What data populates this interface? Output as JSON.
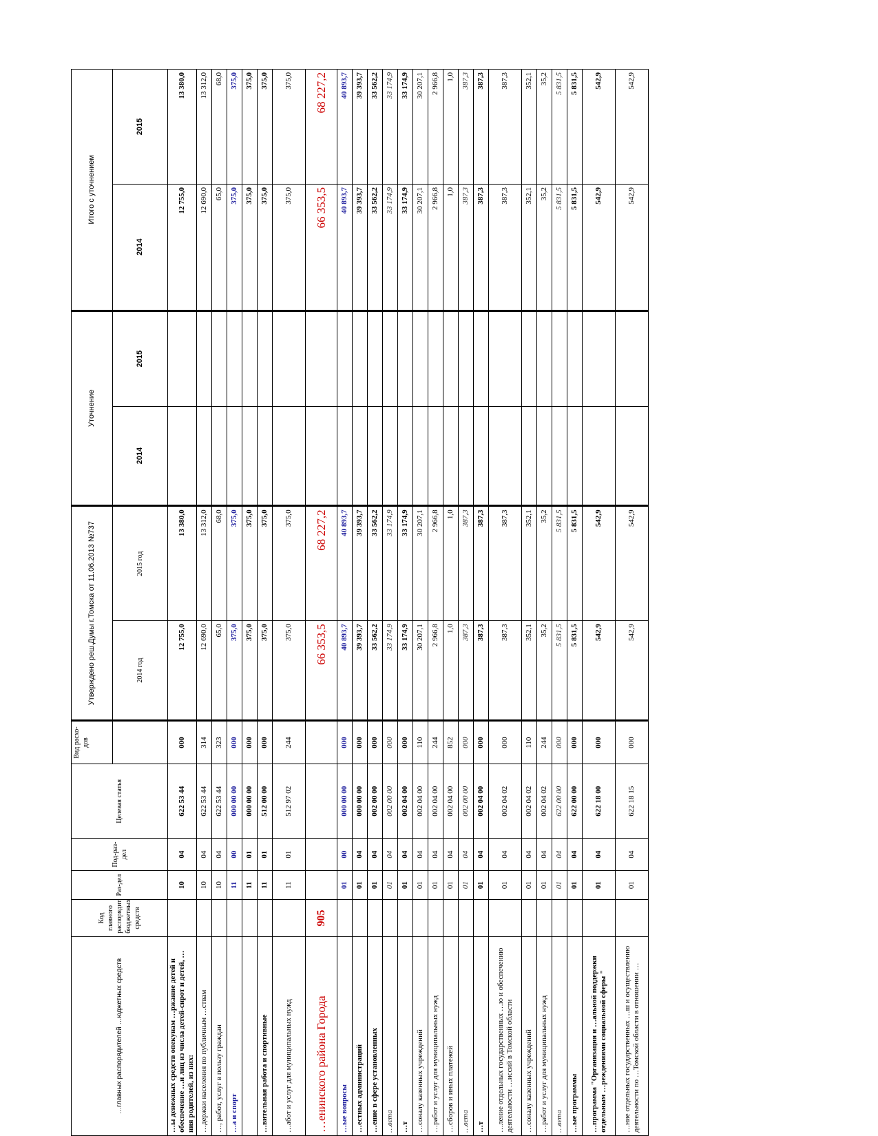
{
  "header": {
    "col_name": "…главных распорядителей …юджетных средств",
    "col_code": "Код главного распорядителя бюджетных средств",
    "col_section": "Раз-дел",
    "col_subsection": "Под-раз-дел",
    "col_target": "Целевая статья",
    "col_type": "Вид расхо-дов",
    "approved_group": "Утверждено реш.Думы г.Томска от 11.06.2013 №737",
    "approved_2014": "2014 год",
    "approved_2015": "2015 год",
    "correction_group": "Уточнение",
    "correction_2014": "2014",
    "correction_2015": "2015",
    "total_group": "Итого с уточнением",
    "total_2014": "2014",
    "total_2015": "2015"
  },
  "rows": [
    {
      "name": "…ы денежных средств опекунам …ржание детей и обеспечение …и лиц из числа детей-сирот и детей, …ния родителей, из них:",
      "code": "",
      "section": "10",
      "subsection": "04",
      "target": "622 53 44",
      "type": "000",
      "a2014": "12 755,0",
      "a2015": "13 380,0",
      "c2014": "",
      "c2015": "",
      "t2014": "12 755,0",
      "t2015": "13 380,0",
      "style": "bold"
    },
    {
      "name": "…держки населения по публичным …ствам",
      "code": "",
      "section": "10",
      "subsection": "04",
      "target": "622 53 44",
      "type": "314",
      "a2014": "12 690,0",
      "a2015": "13 312,0",
      "c2014": "",
      "c2015": "",
      "t2014": "12 690,0",
      "t2015": "13 312,0",
      "style": ""
    },
    {
      "name": "…, работ, услуг в пользу граждан",
      "code": "",
      "section": "10",
      "subsection": "04",
      "target": "622 53 44",
      "type": "323",
      "a2014": "65,0",
      "a2015": "68,0",
      "c2014": "",
      "c2015": "",
      "t2014": "65,0",
      "t2015": "68,0",
      "style": ""
    },
    {
      "name": "…а и спорт",
      "code": "",
      "section": "11",
      "subsection": "00",
      "target": "000 00 00",
      "type": "000",
      "a2014": "375,0",
      "a2015": "375,0",
      "c2014": "",
      "c2015": "",
      "t2014": "375,0",
      "t2015": "375,0",
      "style": "blue"
    },
    {
      "name": "",
      "code": "",
      "section": "11",
      "subsection": "01",
      "target": "000 00 00",
      "type": "000",
      "a2014": "375,0",
      "a2015": "375,0",
      "c2014": "",
      "c2015": "",
      "t2014": "375,0",
      "t2015": "375,0",
      "style": "bold"
    },
    {
      "name": "…вительная работа и спортивные",
      "code": "",
      "section": "11",
      "subsection": "01",
      "target": "512 00 00",
      "type": "000",
      "a2014": "375,0",
      "a2015": "375,0",
      "c2014": "",
      "c2015": "",
      "t2014": "375,0",
      "t2015": "375,0",
      "style": "bold"
    },
    {
      "name": "…абот и услуг для муниципальных нужд",
      "code": "",
      "section": "11",
      "subsection": "01",
      "target": "512 97 02",
      "type": "244",
      "a2014": "375,0",
      "a2015": "375,0",
      "c2014": "",
      "c2015": "",
      "t2014": "375,0",
      "t2015": "375,0",
      "style": "tall"
    },
    {
      "name": "…енинского района Города",
      "code": "905",
      "section": "",
      "subsection": "",
      "target": "",
      "type": "",
      "a2014": "66 353,5",
      "a2015": "68 227,2",
      "c2014": "",
      "c2015": "",
      "t2014": "66 353,5",
      "t2015": "68 227,2",
      "style": "big"
    },
    {
      "name": "…ые вопросы",
      "code": "",
      "section": "01",
      "subsection": "00",
      "target": "000 00 00",
      "type": "000",
      "a2014": "40 893,7",
      "a2015": "40 893,7",
      "c2014": "",
      "c2015": "",
      "t2014": "40 893,7",
      "t2015": "40 893,7",
      "style": "blue"
    },
    {
      "name": "…естных администраций",
      "code": "",
      "section": "01",
      "subsection": "04",
      "target": "000 00 00",
      "type": "000",
      "a2014": "39 393,7",
      "a2015": "39 393,7",
      "c2014": "",
      "c2015": "",
      "t2014": "39 393,7",
      "t2015": "39 393,7",
      "style": "bold"
    },
    {
      "name": "…ение в сфере установленных",
      "code": "",
      "section": "01",
      "subsection": "04",
      "target": "002 00 00",
      "type": "000",
      "a2014": "33 562,2",
      "a2015": "33 562,2",
      "c2014": "",
      "c2015": "",
      "t2014": "33 562,2",
      "t2015": "33 562,2",
      "style": "bold"
    },
    {
      "name": "…вета",
      "code": "",
      "section": "01",
      "subsection": "04",
      "target": "002 00 00",
      "type": "000",
      "a2014": "33 174,9",
      "a2015": "33 174,9",
      "c2014": "",
      "c2015": "",
      "t2014": "33 174,9",
      "t2015": "33 174,9",
      "style": "italic"
    },
    {
      "name": "…т",
      "code": "",
      "section": "01",
      "subsection": "04",
      "target": "002 04 00",
      "type": "000",
      "a2014": "33 174,9",
      "a2015": "33 174,9",
      "c2014": "",
      "c2015": "",
      "t2014": "33 174,9",
      "t2015": "33 174,9",
      "style": "bold"
    },
    {
      "name": "…соналу казенных учреждений",
      "code": "",
      "section": "01",
      "subsection": "04",
      "target": "002 04 00",
      "type": "110",
      "a2014": "30 207,1",
      "a2015": "30 207,1",
      "c2014": "",
      "c2015": "",
      "t2014": "30 207,1",
      "t2015": "30 207,1",
      "style": ""
    },
    {
      "name": "…работ и услуг для муниципальных нужд",
      "code": "",
      "section": "01",
      "subsection": "04",
      "target": "002 04 00",
      "type": "244",
      "a2014": "2 966,8",
      "a2015": "2 966,8",
      "c2014": "",
      "c2015": "",
      "t2014": "2 966,8",
      "t2015": "2 966,8",
      "style": ""
    },
    {
      "name": "…сборов и иных платежей",
      "code": "",
      "section": "01",
      "subsection": "04",
      "target": "002 04 00",
      "type": "852",
      "a2014": "1,0",
      "a2015": "1,0",
      "c2014": "",
      "c2015": "",
      "t2014": "1,0",
      "t2015": "1,0",
      "style": ""
    },
    {
      "name": "…вета",
      "code": "",
      "section": "01",
      "subsection": "04",
      "target": "002 00 00",
      "type": "000",
      "a2014": "387,3",
      "a2015": "387,3",
      "c2014": "",
      "c2015": "",
      "t2014": "387,3",
      "t2015": "387,3",
      "style": "italic"
    },
    {
      "name": "…т",
      "code": "",
      "section": "01",
      "subsection": "04",
      "target": "002 04 00",
      "type": "000",
      "a2014": "387,3",
      "a2015": "387,3",
      "c2014": "",
      "c2015": "",
      "t2014": "387,3",
      "t2015": "387,3",
      "style": "bold"
    },
    {
      "name": "…ление отдельных государственных …ю и обеспечению деятельности …иссий в Томской области",
      "code": "",
      "section": "01",
      "subsection": "04",
      "target": "002 04 02",
      "type": "000",
      "a2014": "387,3",
      "a2015": "387,3",
      "c2014": "",
      "c2015": "",
      "t2014": "387,3",
      "t2015": "387,3",
      "style": "tall"
    },
    {
      "name": "…соналу казенных учреждений",
      "code": "",
      "section": "01",
      "subsection": "04",
      "target": "002 04 02",
      "type": "110",
      "a2014": "352,1",
      "a2015": "352,1",
      "c2014": "",
      "c2015": "",
      "t2014": "352,1",
      "t2015": "352,1",
      "style": ""
    },
    {
      "name": "…работ и услуг для муниципальных нужд",
      "code": "",
      "section": "01",
      "subsection": "04",
      "target": "002 04 02",
      "type": "244",
      "a2014": "35,2",
      "a2015": "35,2",
      "c2014": "",
      "c2015": "",
      "t2014": "35,2",
      "t2015": "35,2",
      "style": ""
    },
    {
      "name": "…вета",
      "code": "",
      "section": "01",
      "subsection": "04",
      "target": "622 00 00",
      "type": "000",
      "a2014": "5 831,5",
      "a2015": "5 831,5",
      "c2014": "",
      "c2015": "",
      "t2014": "5 831,5",
      "t2015": "5 831,5",
      "style": "italic"
    },
    {
      "name": "…ые программы",
      "code": "",
      "section": "01",
      "subsection": "04",
      "target": "622 00 00",
      "type": "000",
      "a2014": "5 831,5",
      "a2015": "5 831,5",
      "c2014": "",
      "c2015": "",
      "t2014": "5 831,5",
      "t2015": "5 831,5",
      "style": "bold"
    },
    {
      "name": "…программа \"Организация и …альной поддержки отдельным …реждениями социальной сферы \"",
      "code": "",
      "section": "01",
      "subsection": "04",
      "target": "622 18 00",
      "type": "000",
      "a2014": "542,9",
      "a2015": "542,9",
      "c2014": "",
      "c2015": "",
      "t2014": "542,9",
      "t2015": "542,9",
      "style": "bold tall"
    },
    {
      "name": "…ние отдельных государственных …ш и осуществлению деятельности по …Томской области в отношении …",
      "code": "",
      "section": "01",
      "subsection": "04",
      "target": "622 18 15",
      "type": "000",
      "a2014": "542,9",
      "a2015": "542,9",
      "c2014": "",
      "c2015": "",
      "t2014": "542,9",
      "t2015": "542,9",
      "style": "tall"
    }
  ]
}
